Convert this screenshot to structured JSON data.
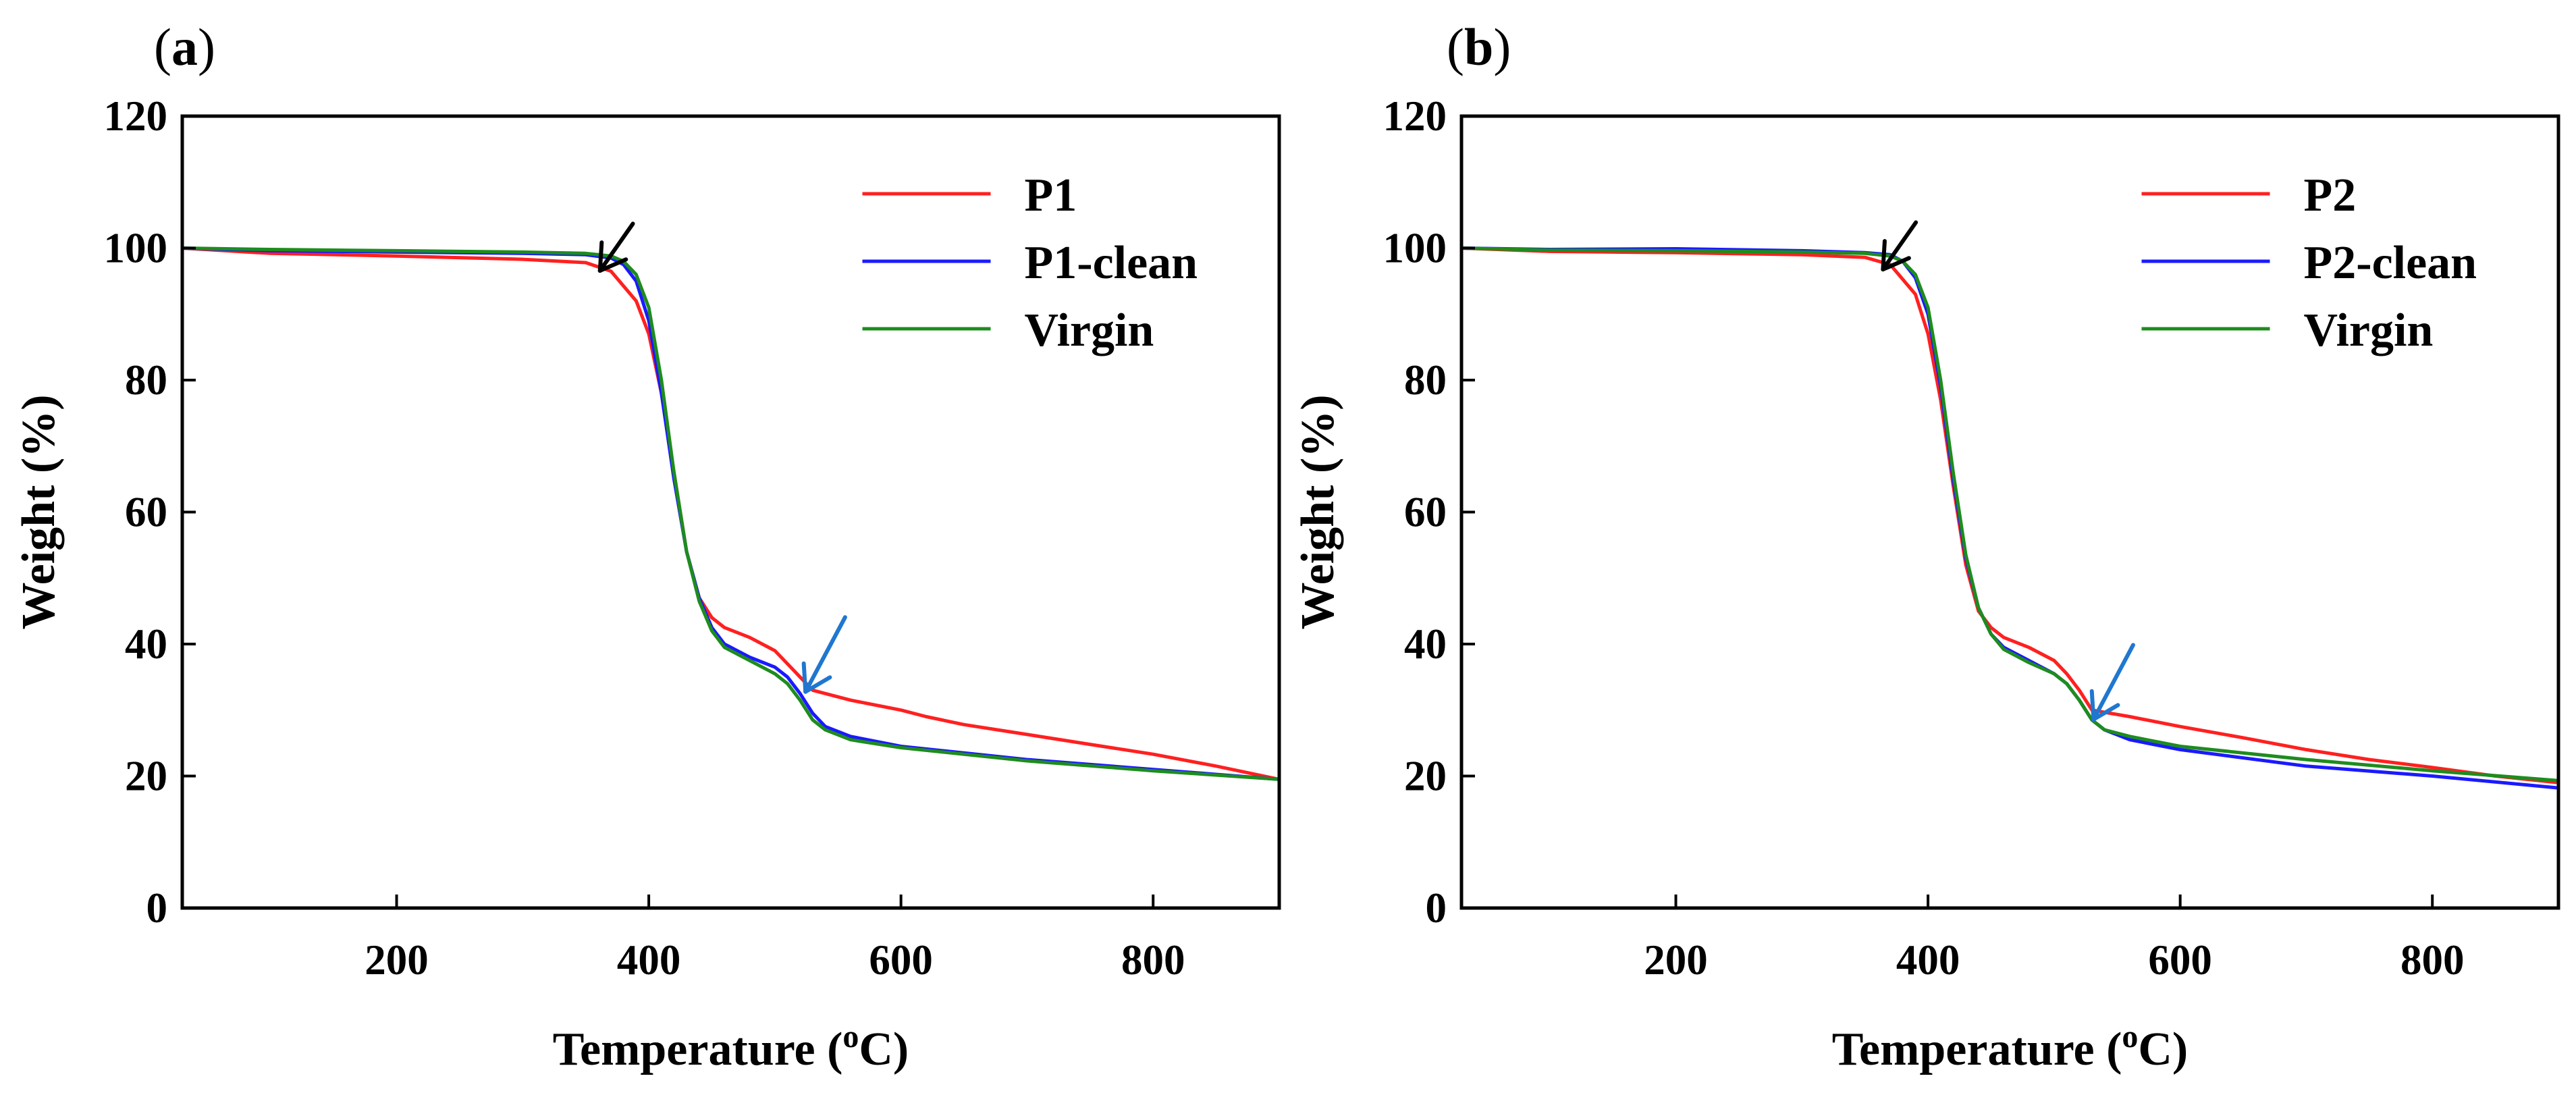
{
  "chart_data": [
    {
      "type": "line",
      "panel_label": "a",
      "panel_label_open": "(",
      "panel_label_close": ")",
      "xlabel_main": "Temperature (",
      "xlabel_sup": "o",
      "xlabel_tail": "C)",
      "ylabel": "Weight (%)",
      "xlim": [
        30,
        900
      ],
      "ylim": [
        0,
        120
      ],
      "xticks": [
        200,
        400,
        600,
        800
      ],
      "yticks": [
        0,
        20,
        40,
        60,
        80,
        100,
        120
      ],
      "legend_position": "top-right",
      "series": [
        {
          "name": "P1",
          "color": "#ff2020",
          "x": [
            30,
            100,
            200,
            300,
            350,
            370,
            390,
            400,
            410,
            420,
            430,
            440,
            450,
            460,
            480,
            500,
            510,
            520,
            530,
            560,
            600,
            620,
            650,
            700,
            750,
            800,
            850,
            900
          ],
          "y": [
            100,
            99.2,
            98.8,
            98.3,
            97.8,
            96.5,
            92,
            87,
            78,
            66,
            54,
            47,
            44,
            42.5,
            41,
            39,
            37,
            35,
            33,
            31.5,
            30,
            29,
            27.8,
            26.3,
            24.8,
            23.3,
            21.5,
            19.5
          ]
        },
        {
          "name": "P1-clean",
          "color": "#1a1aff",
          "x": [
            30,
            100,
            200,
            300,
            350,
            370,
            380,
            390,
            400,
            410,
            420,
            430,
            440,
            450,
            460,
            480,
            500,
            510,
            520,
            530,
            540,
            560,
            600,
            700,
            800,
            900
          ],
          "y": [
            100,
            99.6,
            99.4,
            99.2,
            99,
            98.5,
            97.5,
            95,
            89,
            78,
            65,
            54,
            47,
            42.5,
            40,
            38,
            36.5,
            35,
            32.5,
            29.5,
            27.5,
            26,
            24.5,
            22.5,
            21,
            19.5
          ]
        },
        {
          "name": "Virgin",
          "color": "#1e8c1e",
          "x": [
            30,
            100,
            200,
            300,
            350,
            370,
            380,
            390,
            400,
            410,
            420,
            430,
            440,
            450,
            460,
            480,
            500,
            510,
            520,
            530,
            540,
            560,
            600,
            700,
            800,
            900
          ],
          "y": [
            100,
            99.8,
            99.6,
            99.4,
            99.2,
            98.8,
            98,
            96,
            91,
            80,
            66,
            54,
            46.5,
            42,
            39.5,
            37.5,
            35.5,
            34,
            31.5,
            28.5,
            27,
            25.5,
            24.3,
            22.3,
            20.8,
            19.5
          ]
        }
      ],
      "annotations": [
        {
          "type": "arrow",
          "color": "#000000",
          "points_to": [
            357,
            97.8
          ]
        },
        {
          "type": "arrow",
          "color": "#1f77d0",
          "points_to": [
            520,
            34
          ]
        }
      ]
    },
    {
      "type": "line",
      "panel_label": "b",
      "panel_label_open": "(",
      "panel_label_close": ")",
      "xlabel_main": "Temperature (",
      "xlabel_sup": "o",
      "xlabel_tail": "C)",
      "ylabel": "Weight (%)",
      "xlim": [
        30,
        900
      ],
      "ylim": [
        0,
        120
      ],
      "xticks": [
        200,
        400,
        600,
        800
      ],
      "yticks": [
        0,
        20,
        40,
        60,
        80,
        100,
        120
      ],
      "legend_position": "top-right",
      "series": [
        {
          "name": "P2",
          "color": "#ff2020",
          "x": [
            30,
            100,
            200,
            300,
            350,
            370,
            390,
            400,
            410,
            420,
            430,
            440,
            450,
            460,
            480,
            500,
            510,
            520,
            530,
            560,
            600,
            650,
            700,
            750,
            800,
            850,
            900
          ],
          "y": [
            100,
            99.5,
            99.3,
            99,
            98.6,
            97.5,
            93,
            87,
            77,
            64,
            52,
            45,
            42.5,
            41,
            39.5,
            37.5,
            35.5,
            33,
            30,
            29,
            27.5,
            25.8,
            24,
            22.5,
            21.3,
            20,
            19
          ]
        },
        {
          "name": "P2-clean",
          "color": "#1a1aff",
          "x": [
            30,
            100,
            200,
            300,
            350,
            370,
            380,
            390,
            400,
            410,
            420,
            430,
            440,
            450,
            460,
            480,
            500,
            510,
            520,
            530,
            540,
            560,
            600,
            700,
            800,
            900
          ],
          "y": [
            100,
            99.8,
            99.9,
            99.6,
            99.3,
            99,
            98,
            95.5,
            90,
            79,
            65,
            53,
            45.5,
            41.5,
            39.5,
            37.5,
            35.5,
            34,
            31.5,
            28.5,
            27,
            25.5,
            24,
            21.5,
            20,
            18.2
          ]
        },
        {
          "name": "Virgin",
          "color": "#1e8c1e",
          "x": [
            30,
            100,
            200,
            300,
            350,
            370,
            380,
            390,
            400,
            410,
            420,
            430,
            440,
            450,
            460,
            480,
            500,
            510,
            520,
            530,
            540,
            560,
            600,
            700,
            800,
            900
          ],
          "y": [
            100,
            99.7,
            99.6,
            99.4,
            99.2,
            98.8,
            98,
            96,
            91,
            80,
            66,
            53.5,
            45.5,
            41.5,
            39.2,
            37.2,
            35.5,
            34,
            31.5,
            28.5,
            27,
            26,
            24.5,
            22.5,
            20.8,
            19.3
          ]
        }
      ],
      "annotations": [
        {
          "type": "arrow",
          "color": "#000000",
          "points_to": [
            360,
            98
          ]
        },
        {
          "type": "arrow",
          "color": "#1f77d0",
          "points_to": [
            527,
            29.8
          ]
        }
      ]
    }
  ]
}
